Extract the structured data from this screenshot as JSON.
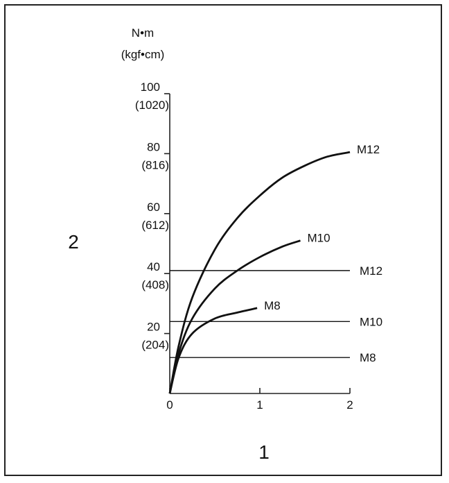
{
  "chart_data": {
    "type": "line",
    "title": "",
    "xlabel": "1",
    "ylabel": "2",
    "y_unit_primary": "N•m",
    "y_unit_secondary": "(kgf•cm)",
    "xlim": [
      0,
      2
    ],
    "ylim": [
      0,
      100
    ],
    "x_ticks": [
      {
        "value": 0,
        "label": "0"
      },
      {
        "value": 1,
        "label": "1"
      },
      {
        "value": 2,
        "label": "2"
      }
    ],
    "y_ticks": [
      {
        "value": 20,
        "label": "20",
        "sublabel": "(204)"
      },
      {
        "value": 40,
        "label": "40",
        "sublabel": "(408)"
      },
      {
        "value": 60,
        "label": "60",
        "sublabel": "(612)"
      },
      {
        "value": 80,
        "label": "80",
        "sublabel": "(816)"
      },
      {
        "value": 100,
        "label": "100",
        "sublabel": "(1020)"
      }
    ],
    "series": [
      {
        "name": "M12",
        "kind": "curve",
        "x": [
          0,
          0.1,
          0.25,
          0.5,
          0.75,
          1.0,
          1.25,
          1.5,
          1.75,
          2.0
        ],
        "y": [
          0,
          16,
          32,
          48,
          58.5,
          66,
          72,
          76,
          79,
          80.5
        ]
      },
      {
        "name": "M10",
        "kind": "curve",
        "x": [
          0,
          0.1,
          0.25,
          0.5,
          0.75,
          1.0,
          1.25,
          1.45
        ],
        "y": [
          0,
          13.5,
          25,
          35,
          41,
          45.5,
          49,
          51
        ]
      },
      {
        "name": "M8",
        "kind": "curve",
        "x": [
          0,
          0.1,
          0.25,
          0.5,
          0.75,
          0.97
        ],
        "y": [
          0,
          12,
          20,
          25,
          27,
          28.5
        ]
      },
      {
        "name": "M12",
        "kind": "limit",
        "x": [
          0,
          2.0
        ],
        "y": [
          41,
          41
        ]
      },
      {
        "name": "M10",
        "kind": "limit",
        "x": [
          0,
          2.0
        ],
        "y": [
          24,
          24
        ]
      },
      {
        "name": "M8",
        "kind": "limit",
        "x": [
          0,
          2.0
        ],
        "y": [
          12,
          12
        ]
      }
    ]
  }
}
